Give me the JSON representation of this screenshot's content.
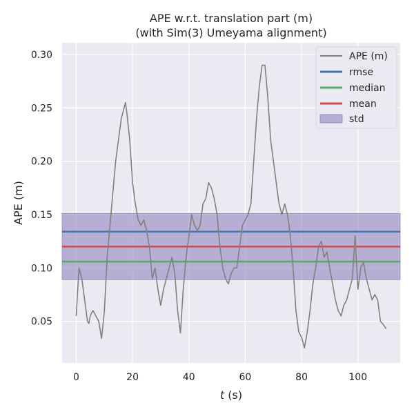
{
  "chart_data": {
    "type": "line",
    "title_line1": "APE w.r.t. translation part (m)",
    "title_line2": "(with Sim(3) Umeyama alignment)",
    "xlabel_var": "t",
    "xlabel_unit": " (s)",
    "ylabel": "APE (m)",
    "xlim": [
      -5,
      115
    ],
    "ylim": [
      0.011,
      0.311
    ],
    "xticks": [
      0,
      20,
      40,
      60,
      80,
      100
    ],
    "yticks": [
      0.05,
      0.1,
      0.15,
      0.2,
      0.25,
      0.3
    ],
    "ytick_labels": [
      "0.05",
      "0.10",
      "0.15",
      "0.20",
      "0.25",
      "0.30"
    ],
    "grid": true,
    "legend_position": "top-right",
    "series": [
      {
        "name": "APE (m)",
        "color": "#808080",
        "x": [
          0,
          1,
          2,
          3,
          3.5,
          4,
          4.5,
          5,
          5.5,
          6,
          7,
          8,
          9,
          10,
          11,
          12,
          13,
          14,
          15,
          16,
          17,
          17.5,
          18,
          19,
          20,
          21,
          22,
          23,
          24,
          25,
          26,
          27,
          28,
          29,
          30,
          31,
          32,
          33,
          34,
          35,
          36,
          37,
          38,
          39,
          40,
          41,
          42,
          43,
          44,
          45,
          46,
          47,
          48,
          49,
          50,
          51,
          52,
          53,
          54,
          55,
          56,
          57,
          58,
          59,
          60,
          61,
          62,
          63,
          64,
          65,
          66,
          67,
          68,
          69,
          70,
          71,
          72,
          73,
          74,
          75,
          76,
          77,
          78,
          79,
          80,
          81,
          82,
          83,
          84,
          85,
          86,
          87,
          88,
          89,
          90,
          91,
          92,
          93,
          94,
          95,
          96,
          97,
          98,
          99,
          100,
          101,
          102,
          103,
          104,
          105,
          106,
          107,
          108,
          109,
          110
        ],
        "values": [
          0.055,
          0.1,
          0.09,
          0.07,
          0.06,
          0.05,
          0.048,
          0.055,
          0.058,
          0.06,
          0.055,
          0.05,
          0.034,
          0.06,
          0.11,
          0.14,
          0.17,
          0.2,
          0.22,
          0.24,
          0.25,
          0.255,
          0.245,
          0.22,
          0.18,
          0.16,
          0.145,
          0.14,
          0.145,
          0.135,
          0.12,
          0.09,
          0.1,
          0.08,
          0.065,
          0.08,
          0.09,
          0.1,
          0.11,
          0.095,
          0.06,
          0.039,
          0.08,
          0.11,
          0.13,
          0.15,
          0.14,
          0.135,
          0.14,
          0.16,
          0.165,
          0.18,
          0.175,
          0.165,
          0.15,
          0.12,
          0.1,
          0.09,
          0.085,
          0.095,
          0.1,
          0.1,
          0.12,
          0.14,
          0.145,
          0.15,
          0.16,
          0.2,
          0.24,
          0.27,
          0.29,
          0.29,
          0.26,
          0.22,
          0.2,
          0.18,
          0.16,
          0.15,
          0.16,
          0.15,
          0.13,
          0.1,
          0.06,
          0.04,
          0.035,
          0.025,
          0.04,
          0.06,
          0.085,
          0.1,
          0.12,
          0.125,
          0.11,
          0.115,
          0.1,
          0.085,
          0.07,
          0.06,
          0.055,
          0.065,
          0.07,
          0.08,
          0.09,
          0.13,
          0.08,
          0.1,
          0.105,
          0.09,
          0.08,
          0.07,
          0.075,
          0.07,
          0.05,
          0.047,
          0.043
        ]
      },
      {
        "name": "rmse",
        "color": "#4c72b0",
        "value": 0.134
      },
      {
        "name": "median",
        "color": "#55a868",
        "value": 0.106
      },
      {
        "name": "mean",
        "color": "#c44e52",
        "value": 0.12
      },
      {
        "name": "std",
        "color": "#8172b3",
        "range": [
          0.089,
          0.151
        ]
      }
    ]
  }
}
